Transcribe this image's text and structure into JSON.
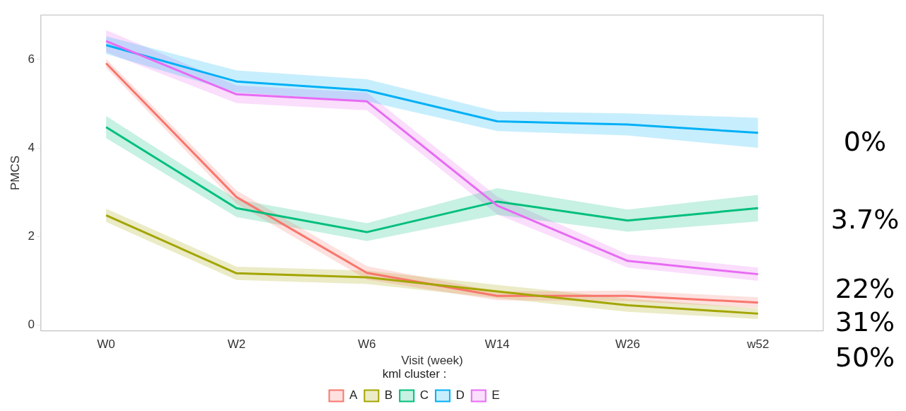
{
  "chart_data": {
    "type": "line",
    "xlabel": "Visit (week)",
    "ylabel": "PMCS",
    "legend_title": "kml cluster :",
    "legend": "bottom",
    "grid": false,
    "marker": "none",
    "line_style": "solid",
    "categories": [
      "W0",
      "W2",
      "W6",
      "W14",
      "W26",
      "w52"
    ],
    "ylim": [
      -0.13,
      7.0
    ],
    "yticks": [
      0,
      2,
      4,
      6
    ],
    "series": [
      {
        "name": "A",
        "color": "#f8766d",
        "values": [
          5.91,
          2.89,
          1.18,
          0.66,
          0.66,
          0.51
        ],
        "lower": [
          5.81,
          2.74,
          1.03,
          0.56,
          0.54,
          0.39
        ],
        "upper": [
          6.01,
          3.04,
          1.33,
          0.76,
          0.78,
          0.63
        ]
      },
      {
        "name": "B",
        "color": "#a3a500",
        "values": [
          2.48,
          1.17,
          1.08,
          0.76,
          0.45,
          0.26
        ],
        "lower": [
          2.33,
          1.02,
          0.93,
          0.61,
          0.3,
          0.14
        ],
        "upper": [
          2.63,
          1.32,
          1.23,
          0.91,
          0.6,
          0.38
        ]
      },
      {
        "name": "C",
        "color": "#00bf7d",
        "values": [
          4.47,
          2.64,
          2.1,
          2.79,
          2.36,
          2.64
        ],
        "lower": [
          4.22,
          2.44,
          1.9,
          2.49,
          2.11,
          2.34
        ],
        "upper": [
          4.72,
          2.84,
          2.3,
          3.09,
          2.61,
          2.94
        ]
      },
      {
        "name": "D",
        "color": "#00b0f6",
        "values": [
          6.32,
          5.5,
          5.3,
          4.6,
          4.53,
          4.34
        ],
        "lower": [
          6.12,
          5.25,
          5.05,
          4.38,
          4.28,
          4.0
        ],
        "upper": [
          6.52,
          5.75,
          5.55,
          4.82,
          4.78,
          4.68
        ]
      },
      {
        "name": "E",
        "color": "#e76bf3",
        "values": [
          6.41,
          5.21,
          5.05,
          2.7,
          1.45,
          1.15
        ],
        "lower": [
          6.16,
          5.01,
          4.85,
          2.5,
          1.3,
          1.0
        ],
        "upper": [
          6.66,
          5.41,
          5.25,
          2.9,
          1.6,
          1.3
        ]
      }
    ],
    "annotations": [
      "0%",
      "3.7%",
      "22%",
      "31%",
      "50%"
    ]
  }
}
